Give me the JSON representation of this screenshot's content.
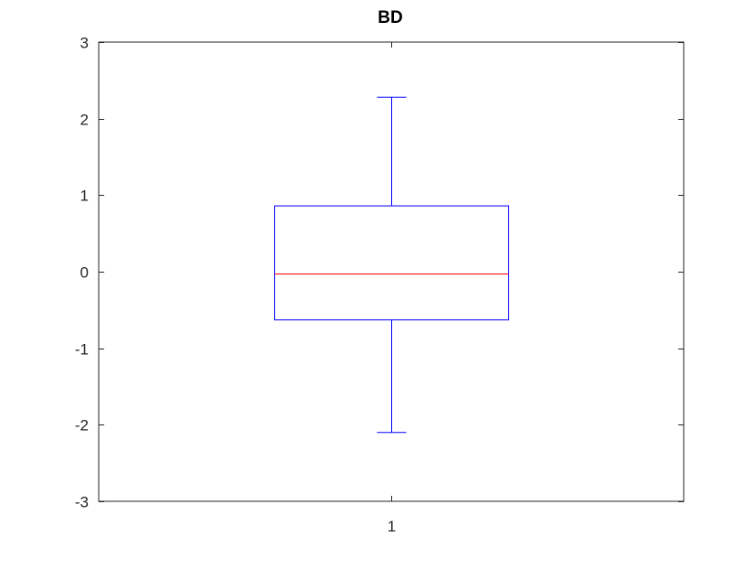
{
  "chart_data": {
    "type": "box",
    "title": "BD",
    "xlabel": "",
    "ylabel": "",
    "categories": [
      "1"
    ],
    "ylim": [
      -3,
      3
    ],
    "yticks": [
      -3,
      -2,
      -1,
      0,
      1,
      2,
      3
    ],
    "ytick_labels": [
      "-3",
      "-2",
      "-1",
      "0",
      "1",
      "2",
      "3"
    ],
    "grid": false,
    "legend": "none",
    "boxes": [
      {
        "category": "1",
        "whisker_low": -2.1,
        "q1": -0.63,
        "median": -0.03,
        "q3": 0.86,
        "whisker_high": 2.28
      }
    ],
    "colors": {
      "box": "#0000ff",
      "whisker": "#0000ff",
      "median": "#ff0000",
      "axes": "#262626"
    }
  }
}
